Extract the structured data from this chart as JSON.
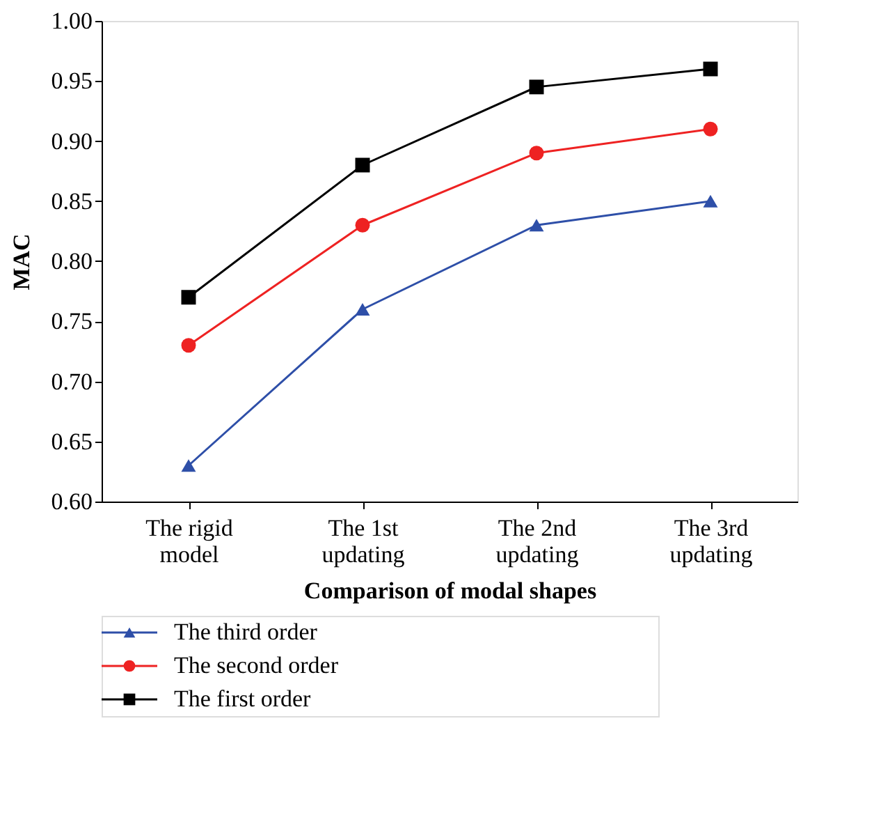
{
  "chart_data": {
    "type": "line",
    "xlabel": "Comparison of modal shapes",
    "ylabel": "MAC",
    "categories": [
      "The rigid model",
      "The 1st updating",
      "The 2nd updating",
      "The 3rd updating"
    ],
    "series": [
      {
        "name": "The first order",
        "color": "#000000",
        "marker": "square",
        "values": [
          0.77,
          0.88,
          0.945,
          0.96
        ]
      },
      {
        "name": "The second order",
        "color": "#ee2222",
        "marker": "circle",
        "values": [
          0.73,
          0.83,
          0.89,
          0.91
        ]
      },
      {
        "name": "The third order",
        "color": "#2e4fa8",
        "marker": "triangle",
        "values": [
          0.63,
          0.76,
          0.83,
          0.85
        ]
      }
    ],
    "ylim": [
      0.6,
      1.0
    ],
    "yticks": [
      {
        "value": 0.6,
        "label": "0.60"
      },
      {
        "value": 0.65,
        "label": "0.65"
      },
      {
        "value": 0.7,
        "label": "0.70"
      },
      {
        "value": 0.75,
        "label": "0.75"
      },
      {
        "value": 0.8,
        "label": "0.80"
      },
      {
        "value": 0.85,
        "label": "0.85"
      },
      {
        "value": 0.9,
        "label": "0.90"
      },
      {
        "value": 0.95,
        "label": "0.95"
      },
      {
        "value": 1.0,
        "label": "1.00"
      }
    ],
    "grid": false,
    "legend": "bottom left",
    "line_style": "solid"
  }
}
